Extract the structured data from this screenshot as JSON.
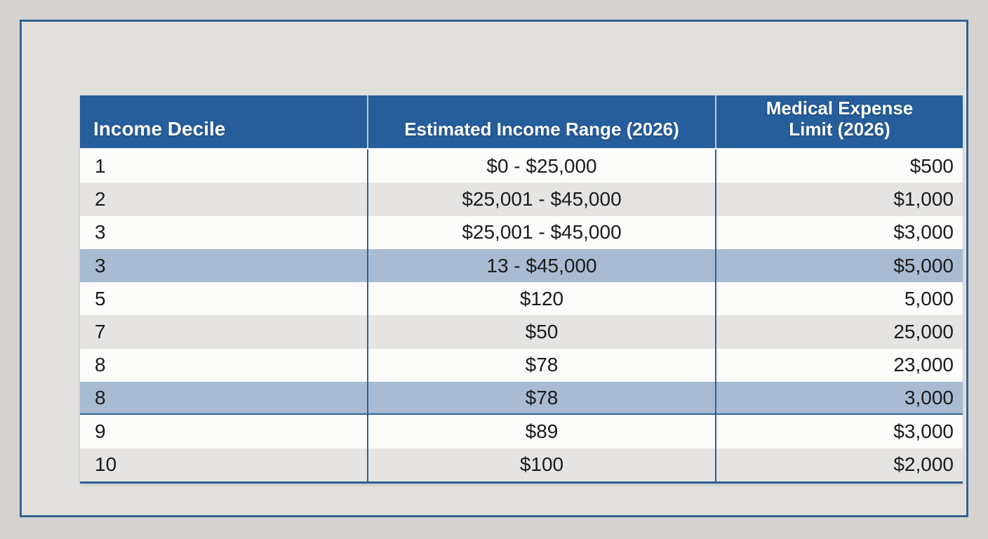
{
  "page": {
    "background": "#d4d3d1",
    "panel_background": "#e1e0dd",
    "frame_border_color": "#35618e"
  },
  "table": {
    "header_bg": "#265d9b",
    "header_text_color": "#ffffff",
    "row_white": "#fcfcfb",
    "row_gray": "#e5e4e2",
    "row_highlight": "#a8bbd2",
    "divider_color": "#2f6195",
    "columns": [
      {
        "label": "Income Decile",
        "align": "left"
      },
      {
        "label": "Estimated Income Range (2026)",
        "align": "center"
      },
      {
        "label": "Medical Expense Limit (2026)",
        "align": "right"
      }
    ],
    "rows": [
      {
        "decile": "1",
        "income_range": "$0 - $25,000",
        "expense_limit": "$500",
        "style": "white"
      },
      {
        "decile": "2",
        "income_range": "$25,001 - $45,000",
        "expense_limit": "$1,000",
        "style": "gray"
      },
      {
        "decile": "3",
        "income_range": "$25,001 - $45,000",
        "expense_limit": "$3,000",
        "style": "white"
      },
      {
        "decile": "3",
        "income_range": "13 - $45,000",
        "expense_limit": "$5,000",
        "style": "highlight"
      },
      {
        "decile": "5",
        "income_range": "$120",
        "expense_limit": "5,000",
        "style": "white"
      },
      {
        "decile": "7",
        "income_range": "$50",
        "expense_limit": "25,000",
        "style": "gray"
      },
      {
        "decile": "8",
        "income_range": "$78",
        "expense_limit": "23,000",
        "style": "white"
      },
      {
        "decile": "8",
        "income_range": "$78",
        "expense_limit": "3,000",
        "style": "highlight",
        "bottom_border": true
      },
      {
        "decile": "9",
        "income_range": "$89",
        "expense_limit": "$3,000",
        "style": "white"
      },
      {
        "decile": "10",
        "income_range": "$100",
        "expense_limit": "$2,000",
        "style": "gray"
      }
    ]
  }
}
